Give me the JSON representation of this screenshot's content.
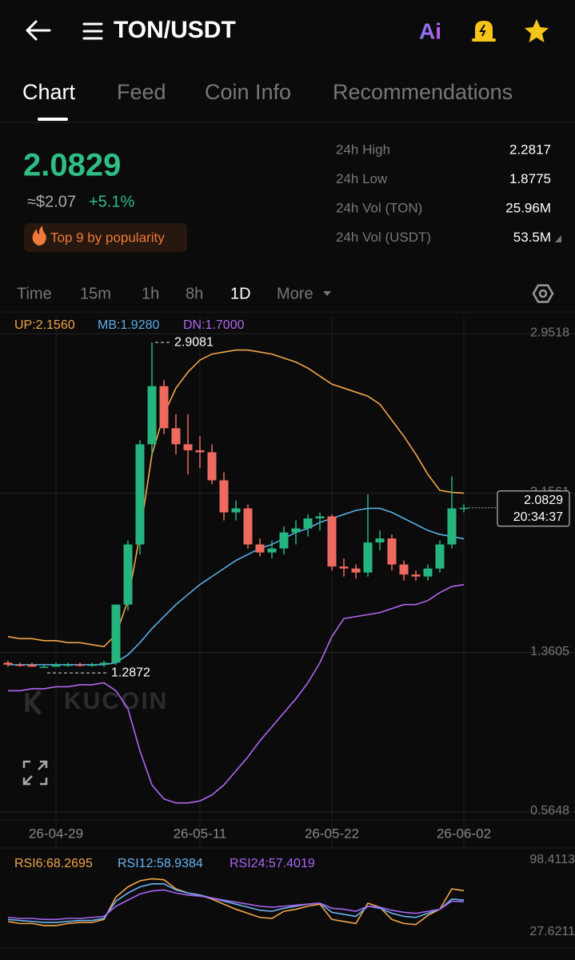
{
  "header": {
    "title": "TON/USDT",
    "ai_label": "Ai"
  },
  "tabs": [
    "Chart",
    "Feed",
    "Coin Info",
    "Recommendations"
  ],
  "ticker": {
    "price": "2.0829",
    "fiat": "≈$2.07",
    "change": "+5.1%",
    "badge": "Top 9 by popularity",
    "stats": [
      [
        "24h High",
        "2.2817"
      ],
      [
        "24h Low",
        "1.8775"
      ],
      [
        "24h Vol (TON)",
        "25.96M"
      ],
      [
        "24h Vol (USDT)",
        "53.5M"
      ]
    ]
  },
  "intervals": [
    "Time",
    "15m",
    "1h",
    "8h",
    "1D",
    "More"
  ],
  "watermark": "KUCOIN",
  "chart_data": [
    {
      "type": "candlestick",
      "categories": [
        null,
        null,
        null,
        null,
        "26-04-29",
        null,
        null,
        null,
        null,
        null,
        null,
        null,
        null,
        null,
        null,
        null,
        "26-05-11",
        null,
        null,
        null,
        null,
        null,
        null,
        null,
        null,
        null,
        null,
        "26-05-22",
        null,
        null,
        null,
        null,
        null,
        null,
        null,
        null,
        null,
        null,
        "26-06-02"
      ],
      "candles": [
        [
          1.31,
          1.32,
          1.29,
          1.3
        ],
        [
          1.3,
          1.31,
          1.29,
          1.295
        ],
        [
          1.3,
          1.31,
          1.29,
          1.29
        ],
        [
          1.29,
          1.3,
          1.2872,
          1.29
        ],
        [
          1.29,
          1.31,
          1.29,
          1.3
        ],
        [
          1.3,
          1.31,
          1.29,
          1.3
        ],
        [
          1.3,
          1.31,
          1.29,
          1.295
        ],
        [
          1.295,
          1.31,
          1.29,
          1.3
        ],
        [
          1.3,
          1.32,
          1.29,
          1.31
        ],
        [
          1.31,
          1.6,
          1.3,
          1.6
        ],
        [
          1.6,
          1.92,
          1.57,
          1.9
        ],
        [
          1.9,
          2.42,
          1.85,
          2.4
        ],
        [
          2.4,
          2.9081,
          2.35,
          2.69
        ],
        [
          2.69,
          2.72,
          2.45,
          2.48
        ],
        [
          2.48,
          2.55,
          2.35,
          2.4
        ],
        [
          2.4,
          2.55,
          2.25,
          2.37
        ],
        [
          2.37,
          2.44,
          2.28,
          2.36
        ],
        [
          2.36,
          2.4,
          2.2,
          2.22
        ],
        [
          2.22,
          2.26,
          2.02,
          2.06
        ],
        [
          2.06,
          2.12,
          2.02,
          2.08
        ],
        [
          2.08,
          2.1,
          1.88,
          1.9
        ],
        [
          1.9,
          1.93,
          1.84,
          1.86
        ],
        [
          1.86,
          1.92,
          1.83,
          1.88
        ],
        [
          1.88,
          1.99,
          1.85,
          1.96
        ],
        [
          1.96,
          2.02,
          1.9,
          1.98
        ],
        [
          1.98,
          2.05,
          1.94,
          2.03
        ],
        [
          2.03,
          2.06,
          1.97,
          2.04
        ],
        [
          2.04,
          2.05,
          1.77,
          1.79
        ],
        [
          1.79,
          1.83,
          1.74,
          1.78
        ],
        [
          1.78,
          1.8,
          1.73,
          1.76
        ],
        [
          1.76,
          2.15,
          1.74,
          1.91
        ],
        [
          1.91,
          1.97,
          1.87,
          1.93
        ],
        [
          1.93,
          1.95,
          1.77,
          1.8
        ],
        [
          1.8,
          1.82,
          1.72,
          1.75
        ],
        [
          1.75,
          1.77,
          1.72,
          1.74
        ],
        [
          1.74,
          1.8,
          1.72,
          1.78
        ],
        [
          1.78,
          1.92,
          1.76,
          1.9
        ],
        [
          1.9,
          2.24,
          1.88,
          2.08
        ],
        [
          2.08,
          2.1,
          2.06,
          2.0829
        ]
      ],
      "up_color": "#26b47f",
      "down_color": "#ee6a5f",
      "series": [
        {
          "name": "UP:2.1560",
          "color": "#f2a54a",
          "values": [
            1.44,
            1.43,
            1.43,
            1.42,
            1.42,
            1.41,
            1.41,
            1.4,
            1.39,
            1.45,
            1.62,
            1.95,
            2.35,
            2.55,
            2.68,
            2.76,
            2.82,
            2.85,
            2.86,
            2.87,
            2.87,
            2.86,
            2.85,
            2.83,
            2.81,
            2.78,
            2.74,
            2.7,
            2.68,
            2.66,
            2.64,
            2.6,
            2.52,
            2.44,
            2.35,
            2.25,
            2.17,
            2.16,
            2.156
          ]
        },
        {
          "name": "MB:1.9280",
          "color": "#5aaee8",
          "values": [
            1.3,
            1.3,
            1.3,
            1.3,
            1.3,
            1.3,
            1.3,
            1.3,
            1.3,
            1.31,
            1.35,
            1.41,
            1.48,
            1.54,
            1.6,
            1.65,
            1.7,
            1.74,
            1.78,
            1.82,
            1.85,
            1.88,
            1.9,
            1.93,
            1.96,
            1.98,
            2.01,
            2.03,
            2.05,
            2.07,
            2.08,
            2.08,
            2.06,
            2.03,
            2.0,
            1.97,
            1.95,
            1.94,
            1.928
          ]
        },
        {
          "name": "DN:1.7000",
          "color": "#b066f2",
          "values": [
            1.17,
            1.17,
            1.18,
            1.18,
            1.19,
            1.19,
            1.2,
            1.2,
            1.21,
            1.17,
            1.08,
            0.87,
            0.7,
            0.63,
            0.61,
            0.61,
            0.62,
            0.65,
            0.7,
            0.77,
            0.84,
            0.92,
            0.99,
            1.06,
            1.13,
            1.21,
            1.31,
            1.44,
            1.53,
            1.54,
            1.55,
            1.56,
            1.58,
            1.6,
            1.6,
            1.62,
            1.66,
            1.69,
            1.7
          ]
        }
      ],
      "ylim": [
        0.525,
        3.04
      ],
      "yticks": [
        2.9518,
        2.1561,
        1.3605,
        0.5648
      ],
      "high_marker": 2.9081,
      "low_marker": 1.2872,
      "last_price": 2.0829,
      "countdown": "20:34:37",
      "grid": true
    },
    {
      "type": "line",
      "series": [
        {
          "name": "RSI6:68.2695",
          "color": "#f2a54a",
          "values": [
            38,
            36,
            36,
            34,
            34,
            36,
            37,
            37,
            40,
            62,
            72,
            78,
            80,
            79,
            70,
            66,
            64,
            60,
            55,
            50,
            46,
            42,
            41,
            48,
            50,
            53,
            55,
            40,
            38,
            36,
            56,
            52,
            40,
            36,
            35,
            44,
            50,
            70,
            68.2695
          ]
        },
        {
          "name": "RSI12:58.9384",
          "color": "#6ab4f2",
          "values": [
            40,
            39,
            38,
            37,
            37,
            38,
            39,
            39,
            41,
            58,
            66,
            72,
            75,
            75,
            69,
            66,
            64,
            61,
            58,
            55,
            52,
            49,
            48,
            51,
            53,
            55,
            56,
            47,
            45,
            43,
            53,
            51,
            46,
            43,
            42,
            46,
            50,
            60,
            58.9384
          ]
        },
        {
          "name": "RSI24:57.4019",
          "color": "#a865f2",
          "values": [
            42,
            41,
            41,
            40,
            40,
            41,
            41,
            42,
            43,
            53,
            59,
            65,
            68,
            69,
            66,
            64,
            63,
            61,
            59,
            57,
            55,
            53,
            52,
            53,
            54,
            55,
            56,
            51,
            50,
            48,
            53,
            52,
            49,
            47,
            46,
            48,
            50,
            58,
            57.4019
          ]
        }
      ],
      "ylim": [
        11.9,
        106.3
      ],
      "yticks": [
        98.4113,
        27.6211
      ]
    }
  ]
}
